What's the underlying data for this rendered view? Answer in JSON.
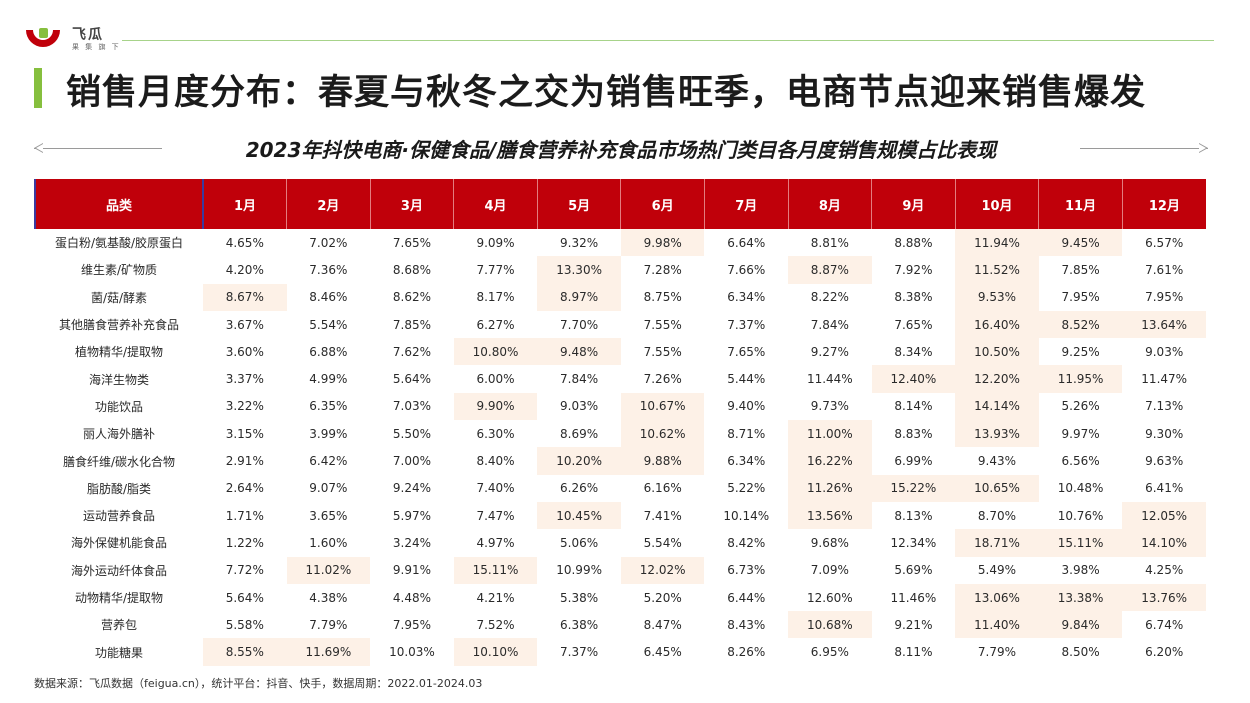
{
  "brand": {
    "name": "飞瓜",
    "slogan": "果 集 旗 下",
    "accent": "#c0000a",
    "green": "#86bf3e"
  },
  "page_title": "销售月度分布：春夏与秋冬之交为销售旺季，电商节点迎来销售爆发",
  "table_title": "2023年抖快电商·保健食品/膳食营养补充食品市场热门类目各月度销售规模占比表现",
  "columns": [
    "品类",
    "1月",
    "2月",
    "3月",
    "4月",
    "5月",
    "6月",
    "7月",
    "8月",
    "9月",
    "10月",
    "11月",
    "12月"
  ],
  "rows": [
    {
      "category": "蛋白粉/氨基酸/胶原蛋白",
      "values": [
        "4.65%",
        "7.02%",
        "7.65%",
        "9.09%",
        "9.32%",
        "9.98%",
        "6.64%",
        "8.81%",
        "8.88%",
        "11.94%",
        "9.45%",
        "6.57%"
      ],
      "highlight": [
        5,
        9,
        10
      ]
    },
    {
      "category": "维生素/矿物质",
      "values": [
        "4.20%",
        "7.36%",
        "8.68%",
        "7.77%",
        "13.30%",
        "7.28%",
        "7.66%",
        "8.87%",
        "7.92%",
        "11.52%",
        "7.85%",
        "7.61%"
      ],
      "highlight": [
        4,
        7,
        9
      ]
    },
    {
      "category": "菌/菇/酵素",
      "values": [
        "8.67%",
        "8.46%",
        "8.62%",
        "8.17%",
        "8.97%",
        "8.75%",
        "6.34%",
        "8.22%",
        "8.38%",
        "9.53%",
        "7.95%",
        "7.95%"
      ],
      "highlight": [
        0,
        4,
        9
      ]
    },
    {
      "category": "其他膳食营养补充食品",
      "values": [
        "3.67%",
        "5.54%",
        "7.85%",
        "6.27%",
        "7.70%",
        "7.55%",
        "7.37%",
        "7.84%",
        "7.65%",
        "16.40%",
        "8.52%",
        "13.64%"
      ],
      "highlight": [
        9,
        10,
        11
      ]
    },
    {
      "category": "植物精华/提取物",
      "values": [
        "3.60%",
        "6.88%",
        "7.62%",
        "10.80%",
        "9.48%",
        "7.55%",
        "7.65%",
        "9.27%",
        "8.34%",
        "10.50%",
        "9.25%",
        "9.03%"
      ],
      "highlight": [
        3,
        4,
        9
      ]
    },
    {
      "category": "海洋生物类",
      "values": [
        "3.37%",
        "4.99%",
        "5.64%",
        "6.00%",
        "7.84%",
        "7.26%",
        "5.44%",
        "11.44%",
        "12.40%",
        "12.20%",
        "11.95%",
        "11.47%"
      ],
      "highlight": [
        8,
        9,
        10
      ]
    },
    {
      "category": "功能饮品",
      "values": [
        "3.22%",
        "6.35%",
        "7.03%",
        "9.90%",
        "9.03%",
        "10.67%",
        "9.40%",
        "9.73%",
        "8.14%",
        "14.14%",
        "5.26%",
        "7.13%"
      ],
      "highlight": [
        3,
        5,
        9
      ]
    },
    {
      "category": "丽人海外膳补",
      "values": [
        "3.15%",
        "3.99%",
        "5.50%",
        "6.30%",
        "8.69%",
        "10.62%",
        "8.71%",
        "11.00%",
        "8.83%",
        "13.93%",
        "9.97%",
        "9.30%"
      ],
      "highlight": [
        5,
        7,
        9
      ]
    },
    {
      "category": "膳食纤维/碳水化合物",
      "values": [
        "2.91%",
        "6.42%",
        "7.00%",
        "8.40%",
        "10.20%",
        "9.88%",
        "6.34%",
        "16.22%",
        "6.99%",
        "9.43%",
        "6.56%",
        "9.63%"
      ],
      "highlight": [
        4,
        5,
        7
      ]
    },
    {
      "category": "脂肪酸/脂类",
      "values": [
        "2.64%",
        "9.07%",
        "9.24%",
        "7.40%",
        "6.26%",
        "6.16%",
        "5.22%",
        "11.26%",
        "15.22%",
        "10.65%",
        "10.48%",
        "6.41%"
      ],
      "highlight": [
        7,
        8,
        9
      ]
    },
    {
      "category": "运动营养食品",
      "values": [
        "1.71%",
        "3.65%",
        "5.97%",
        "7.47%",
        "10.45%",
        "7.41%",
        "10.14%",
        "13.56%",
        "8.13%",
        "8.70%",
        "10.76%",
        "12.05%"
      ],
      "highlight": [
        4,
        7,
        11
      ]
    },
    {
      "category": "海外保健机能食品",
      "values": [
        "1.22%",
        "1.60%",
        "3.24%",
        "4.97%",
        "5.06%",
        "5.54%",
        "8.42%",
        "9.68%",
        "12.34%",
        "18.71%",
        "15.11%",
        "14.10%"
      ],
      "highlight": [
        9,
        10,
        11
      ]
    },
    {
      "category": "海外运动纤体食品",
      "values": [
        "7.72%",
        "11.02%",
        "9.91%",
        "15.11%",
        "10.99%",
        "12.02%",
        "6.73%",
        "7.09%",
        "5.69%",
        "5.49%",
        "3.98%",
        "4.25%"
      ],
      "highlight": [
        1,
        3,
        5
      ]
    },
    {
      "category": "动物精华/提取物",
      "values": [
        "5.64%",
        "4.38%",
        "4.48%",
        "4.21%",
        "5.38%",
        "5.20%",
        "6.44%",
        "12.60%",
        "11.46%",
        "13.06%",
        "13.38%",
        "13.76%"
      ],
      "highlight": [
        9,
        10,
        11
      ]
    },
    {
      "category": "营养包",
      "values": [
        "5.58%",
        "7.79%",
        "7.95%",
        "7.52%",
        "6.38%",
        "8.47%",
        "8.43%",
        "10.68%",
        "9.21%",
        "11.40%",
        "9.84%",
        "6.74%"
      ],
      "highlight": [
        7,
        9,
        10
      ]
    },
    {
      "category": "功能糖果",
      "values": [
        "8.55%",
        "11.69%",
        "10.03%",
        "10.10%",
        "7.37%",
        "6.45%",
        "8.26%",
        "6.95%",
        "8.11%",
        "7.79%",
        "8.50%",
        "6.20%"
      ],
      "highlight": [
        0,
        1,
        3
      ]
    }
  ],
  "source_note": "数据来源：飞瓜数据（feigua.cn），统计平台：抖音、快手，数据周期：2022.01-2024.03"
}
